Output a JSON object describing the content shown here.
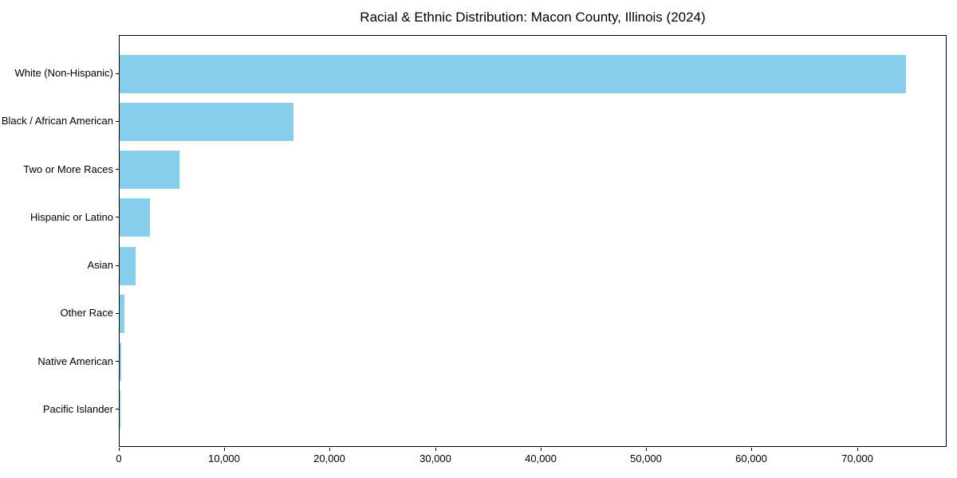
{
  "chart_data": {
    "type": "bar",
    "orientation": "horizontal",
    "title": "Racial & Ethnic Distribution: Macon County, Illinois (2024)",
    "categories": [
      "White (Non-Hispanic)",
      "Black / African American",
      "Two or More Races",
      "Hispanic or Latino",
      "Asian",
      "Other Race",
      "Native American",
      "Pacific Islander"
    ],
    "values": [
      74600,
      16500,
      5700,
      2900,
      1550,
      480,
      150,
      40
    ],
    "xlabel": "",
    "ylabel": "",
    "xlim": [
      0,
      78500
    ],
    "x_tick_values": [
      0,
      10000,
      20000,
      30000,
      40000,
      50000,
      60000,
      70000
    ],
    "x_tick_labels": [
      "0",
      "10,000",
      "20,000",
      "30,000",
      "40,000",
      "50,000",
      "60,000",
      "70,000"
    ],
    "bar_color": "#87CEEB",
    "grid": false,
    "legend_position": "none",
    "text_color": "#000000",
    "background_color": "#ffffff"
  }
}
